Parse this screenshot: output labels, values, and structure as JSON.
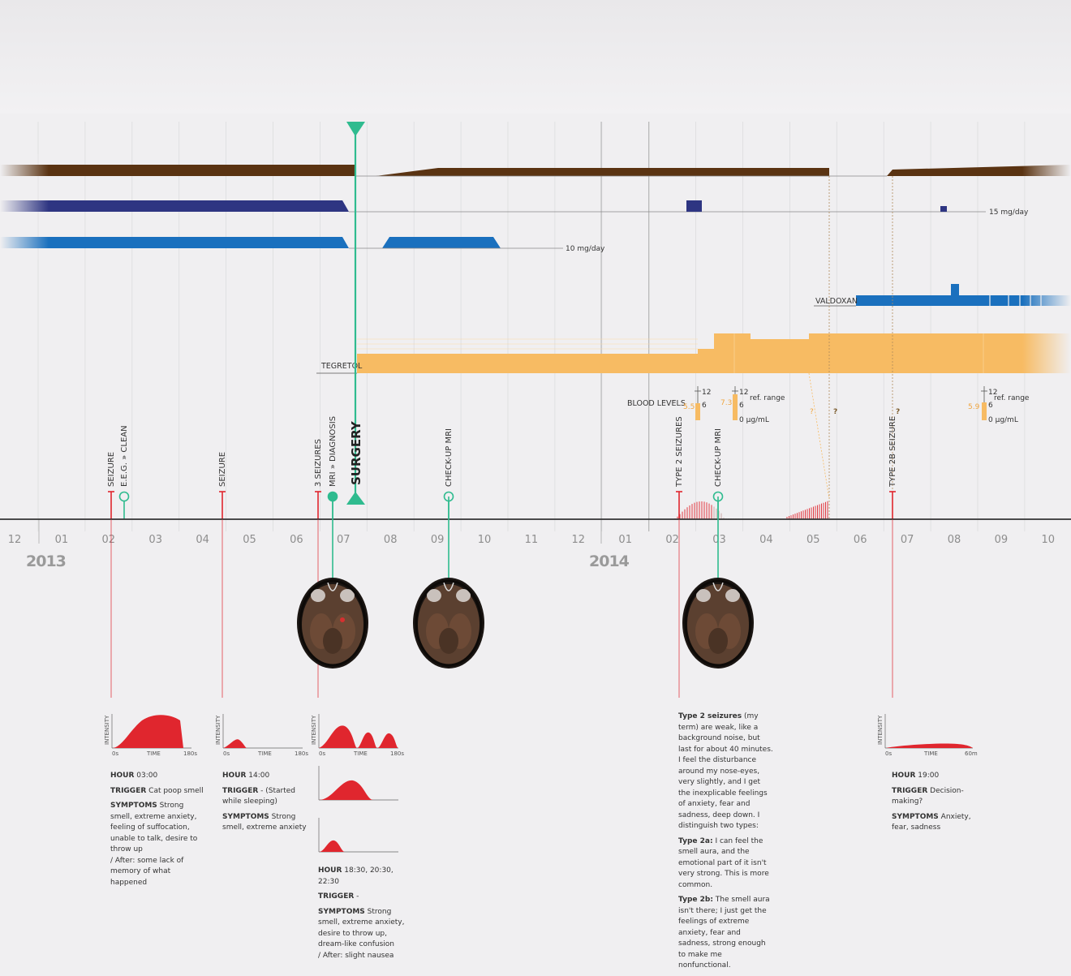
{
  "chart_data": {
    "type": "timeline",
    "months": [
      "12",
      "01",
      "02",
      "03",
      "04",
      "05",
      "06",
      "07",
      "08",
      "09",
      "10",
      "11",
      "12",
      "01",
      "02",
      "03",
      "04",
      "05",
      "06",
      "07",
      "08",
      "09",
      "10"
    ],
    "years": [
      "2013",
      "2014"
    ],
    "medications": {
      "dose_label_1": "15 mg/day",
      "dose_label_2": "10 mg/day",
      "valdoxan_label": "VALDOXAN",
      "tegretol_label": "TEGRETOL"
    },
    "blood_levels": {
      "label": "BLOOD LEVELS",
      "scale_top": "12",
      "scale_mid": "6",
      "unit": "0 µg/mL",
      "ref": "ref. range",
      "readings": [
        "5.5",
        "7.3",
        "?",
        "?",
        "?",
        "5.9"
      ]
    },
    "events": [
      {
        "label": "SEIZURE",
        "kind": "seizure"
      },
      {
        "label": "E.E.G. » CLEAN",
        "kind": "exam"
      },
      {
        "label": "SEIZURE",
        "kind": "seizure"
      },
      {
        "label": "3 SEIZURES",
        "kind": "seizure"
      },
      {
        "label": "MRI » DIAGNOSIS",
        "kind": "exam"
      },
      {
        "label": "SURGERY",
        "kind": "surgery"
      },
      {
        "label": "CHECK-UP MRI",
        "kind": "exam"
      },
      {
        "label": "TYPE 2 SEIZURES",
        "kind": "seizure"
      },
      {
        "label": "CHECK-UP MRI",
        "kind": "exam"
      },
      {
        "label": "TYPE 2B SEIZURE",
        "kind": "seizure"
      }
    ],
    "mini_chart_labels": {
      "y": "INTENSITY",
      "x": "TIME",
      "x0": "0s",
      "x180": "180s",
      "x60": "60m"
    },
    "annotations": [
      {
        "hour_key": "HOUR",
        "hour": "03:00",
        "trigger_key": "TRIGGER",
        "trigger": "Cat poop smell",
        "symptoms_key": "SYMPTOMS",
        "symptoms": "Strong smell, extreme anxiety, feeling of suffocation, unable to talk, desire to throw up",
        "after": "/ After: some lack of memory of what happened"
      },
      {
        "hour_key": "HOUR",
        "hour": "14:00",
        "trigger_key": "TRIGGER",
        "trigger": "- (Started while sleeping)",
        "symptoms_key": "SYMPTOMS",
        "symptoms": "Strong smell, extreme anxiety",
        "after": ""
      },
      {
        "hour_key": "HOUR",
        "hour": "18:30, 20:30, 22:30",
        "trigger_key": "TRIGGER",
        "trigger": "-",
        "symptoms_key": "SYMPTOMS",
        "symptoms": "Strong smell, extreme anxiety, desire to throw up, dream-like confusion",
        "after": "/ After: slight nausea"
      },
      {
        "hour_key": "HOUR",
        "hour": "19:00",
        "trigger_key": "TRIGGER",
        "trigger": "Decision-making?",
        "symptoms_key": "SYMPTOMS",
        "symptoms": "Anxiety, fear, sadness",
        "after": ""
      }
    ],
    "type2_note": {
      "p1_key": "Type 2 seizures",
      "p1": "(my term) are weak, like a background noise, but last for about 40 minutes. I feel the disturbance around my nose-eyes, very slightly, and I get the inexplicable feelings of anxiety, fear and sadness, deep down. I distinguish two types:",
      "p2_key": "Type 2a:",
      "p2": "I can feel the smell aura, and the emotional part of it isn't very strong. This is more common.",
      "p3_key": "Type 2b:",
      "p3": "The smell aura isn't there; I just get the feelings of extreme anxiety, fear and sadness, strong enough to make me nonfunctional."
    },
    "colors": {
      "brown": "#5a3312",
      "navy": "#2e3582",
      "blue": "#1a70be",
      "orange": "#f7bb63",
      "green": "#2fbb8f",
      "red": "#e0262e"
    }
  }
}
